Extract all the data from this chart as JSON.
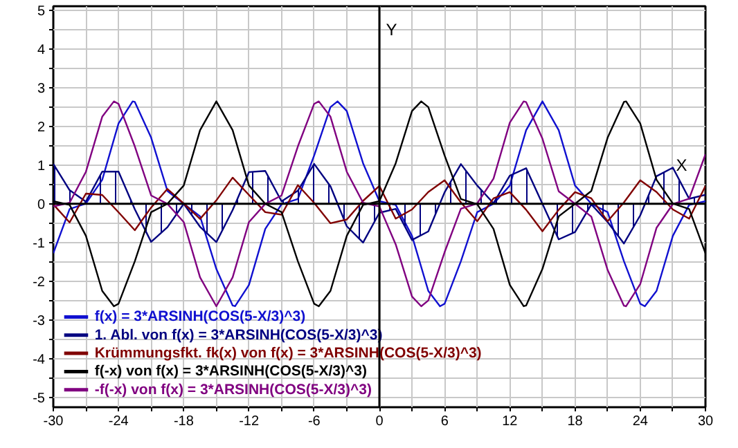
{
  "chart_data": {
    "type": "line",
    "xlabel": "X",
    "ylabel": "Y",
    "xlim": [
      -30,
      30
    ],
    "ylim": [
      -5.25,
      5.1
    ],
    "xticks": [
      -30,
      {
        "value": -27,
        "label": null
      },
      -24,
      {
        "value": -21,
        "label": null
      },
      -18,
      {
        "value": -15,
        "label": null
      },
      -12,
      {
        "value": -9,
        "label": null
      },
      -6,
      {
        "value": -3,
        "label": null
      },
      0,
      {
        "value": 3,
        "label": null
      },
      6,
      {
        "value": 9,
        "label": null
      },
      12,
      {
        "value": 15,
        "label": null
      },
      18,
      {
        "value": 21,
        "label": null
      },
      24,
      {
        "value": 27,
        "label": null
      },
      30
    ],
    "yticks": [
      -5,
      {
        "value": -4.5,
        "label": null
      },
      -4,
      {
        "value": -3.5,
        "label": null
      },
      -3,
      {
        "value": -2.5,
        "label": null
      },
      -2,
      {
        "value": -1.5,
        "label": null
      },
      -1,
      {
        "value": -0.5,
        "label": null
      },
      0,
      {
        "value": 0.5,
        "label": null
      },
      1,
      {
        "value": 1.5,
        "label": null
      },
      2,
      {
        "value": 2.5,
        "label": null
      },
      3,
      {
        "value": 3.5,
        "label": null
      },
      4,
      {
        "value": 4.5,
        "label": null
      },
      5
    ],
    "grid": true,
    "legend": "bottom left",
    "series": [
      {
        "name": "f(x) = 3*ARSINH(COS(5-X/3)^3)",
        "color": "#1010d0",
        "x": [
          -30,
          -28.5,
          -27,
          -25.5,
          -24,
          -22.699,
          -22.5,
          -21,
          -19.5,
          -18,
          -16.5,
          -15,
          -13.5,
          -13.274,
          -12,
          -10.5,
          -9,
          -7.5,
          -6,
          -4.5,
          -3.85,
          -3,
          -1.5,
          0,
          1.5,
          3,
          4.5,
          5.575,
          6,
          7.5,
          9,
          10.5,
          12,
          13.5,
          15,
          16.5,
          18,
          19.5,
          21,
          22.5,
          24,
          24.425,
          25.5,
          27,
          28.5,
          30
        ],
        "values": [
          -1.2765,
          -0.1341,
          0.0077,
          0.6183,
          2.0729,
          2.6441,
          2.6301,
          1.7088,
          0.3321,
          0.0,
          -0.322,
          -1.6826,
          -2.6261,
          -2.6441,
          -2.0948,
          -0.6495,
          -0.0092,
          0.1249,
          1.2491,
          2.4961,
          2.6441,
          2.3935,
          1.0463,
          0.0685,
          -0.0281,
          -0.8273,
          -2.2475,
          -2.6441,
          -2.5805,
          -1.4816,
          -0.216,
          0.0011,
          0.4712,
          1.8984,
          2.6441,
          1.8984,
          0.4712,
          0.0011,
          -0.216,
          -1.4816,
          -2.5805,
          -2.6441,
          -2.2475,
          -0.8273,
          -0.0281,
          0.0685
        ]
      },
      {
        "name": "1. Abl. von f(x) = 3*ARSINH(COS(5-X/3)^3)",
        "color": "#000080",
        "type": "area",
        "x": [
          -30,
          -28.5,
          -27,
          -25.5,
          -24,
          -22.5,
          -21,
          -19.5,
          -18,
          -16.5,
          -15,
          -13.5,
          -12,
          -10.5,
          -9,
          -7.5,
          -6,
          -4.5,
          -3,
          -1.5,
          0,
          1.5,
          3,
          4.5,
          6,
          7.5,
          9,
          10.5,
          12,
          13.5,
          15,
          16.5,
          18,
          19.5,
          21,
          22.5,
          24,
          25.5,
          27,
          28.5,
          30
        ],
        "values": [
          1.0312,
          0.353,
          0.0556,
          0.8298,
          0.8315,
          -0.1405,
          -0.9825,
          -0.6037,
          -0.0001,
          -0.5934,
          -0.9893,
          -0.1592,
          0.8186,
          0.8482,
          0.0628,
          0.3378,
          1.0297,
          0.4504,
          -0.5787,
          -1.0014,
          -0.2314,
          -0.1303,
          -0.9343,
          -0.7132,
          0.2978,
          1.0248,
          0.4712,
          0.015,
          0.7279,
          0.9178,
          0,
          -0.9178,
          -0.7279,
          -0.015,
          -0.4712,
          -1.0248,
          -0.2978,
          0.7132,
          0.9343,
          0.1303,
          0.2314
        ]
      },
      {
        "name": "Krümmungsfkt. fk(x) von f(x) = 3*ARSINH(COS(5-X/3)^3)",
        "color": "#800000",
        "x": [
          -30,
          -28.5,
          -27,
          -25.5,
          -24,
          -22.5,
          -21,
          -19.5,
          -18,
          -16.5,
          -15,
          -13.5,
          -12,
          -10.5,
          -9,
          -7.5,
          -6,
          -4.5,
          -3,
          -1.5,
          0,
          1.5,
          3,
          4.5,
          6,
          7.5,
          9,
          10.5,
          12,
          13.5,
          15,
          16.5,
          18,
          19.5,
          21,
          22.5,
          24,
          25.5,
          27,
          28.5,
          30
        ],
        "values": [
          -0.015,
          -0.4807,
          0.2646,
          0.2293,
          -0.2182,
          -0.6829,
          -0.0959,
          0.3833,
          0.0089,
          -0.3895,
          0.0887,
          0.6761,
          0.2276,
          -0.2154,
          -0.2801,
          0.4815,
          0.022,
          -0.5014,
          -0.405,
          0.0767,
          0.4608,
          -0.3836,
          -0.1459,
          0.3045,
          0.6062,
          0.0364,
          -0.451,
          0.1404,
          0.3025,
          -0.1531,
          -0.7071,
          -0.1531,
          0.3025,
          0.1404,
          -0.451,
          0.0364,
          0.6062,
          0.3045,
          -0.1459,
          -0.3836,
          0.4608
        ]
      },
      {
        "name": "f(-x) von f(x) = 3*ARSINH(COS(5-X/3)^3)",
        "color": "#000000",
        "x": [
          -30,
          -28.5,
          -27,
          -25.5,
          -24.425,
          -24,
          -22.5,
          -21,
          -19.5,
          -18,
          -16.5,
          -15,
          -13.5,
          -12,
          -10.5,
          -9,
          -7.5,
          -6,
          -5.575,
          -4.5,
          -3,
          -1.5,
          0,
          1.5,
          3,
          3.85,
          4.5,
          6,
          7.5,
          9,
          10.5,
          12,
          13.274,
          13.5,
          15,
          16.5,
          18,
          19.5,
          21,
          22.5,
          22.699,
          24,
          25.5,
          27,
          28.5,
          30
        ],
        "values": [
          0.0685,
          -0.0281,
          -0.8273,
          -2.2475,
          -2.6441,
          -2.5805,
          -1.4816,
          -0.216,
          0.0011,
          0.4712,
          1.8984,
          2.6441,
          1.8984,
          0.4712,
          0.0011,
          -0.216,
          -1.4816,
          -2.5805,
          -2.6441,
          -2.2475,
          -0.8273,
          -0.0281,
          0.0685,
          1.0463,
          2.3935,
          2.6441,
          2.4961,
          1.2491,
          0.1249,
          -0.0092,
          -0.6495,
          -2.0948,
          -2.6441,
          -2.6261,
          -1.6826,
          -0.322,
          0.0,
          0.3321,
          1.7088,
          2.6301,
          2.6441,
          2.0729,
          0.6183,
          0.0077,
          -0.1341,
          -1.2765
        ]
      },
      {
        "name": "-f(-x) von f(x) = 3*ARSINH(COS(5-X/3)^3)",
        "color": "#800080",
        "x": [
          -30,
          -28.5,
          -27,
          -25.5,
          -24.425,
          -24,
          -22.5,
          -21,
          -19.5,
          -18,
          -16.5,
          -15,
          -13.5,
          -12,
          -10.5,
          -9,
          -7.5,
          -6,
          -5.575,
          -4.5,
          -3,
          -1.5,
          0,
          1.5,
          3,
          3.85,
          4.5,
          6,
          7.5,
          9,
          10.5,
          12,
          13.274,
          13.5,
          15,
          16.5,
          18,
          19.5,
          21,
          22.5,
          22.699,
          24,
          25.5,
          27,
          28.5,
          30
        ],
        "values": [
          -0.0685,
          0.0281,
          0.8273,
          2.2475,
          2.6441,
          2.5805,
          1.4816,
          0.216,
          -0.0011,
          -0.4712,
          -1.8984,
          -2.6441,
          -1.8984,
          -0.4712,
          -0.0011,
          0.216,
          1.4816,
          2.5805,
          2.6441,
          2.2475,
          0.8273,
          0.0281,
          -0.0685,
          -1.0463,
          -2.3935,
          -2.6441,
          -2.4961,
          -1.2491,
          -0.1249,
          0.0092,
          0.6495,
          2.0948,
          2.6441,
          2.6261,
          1.6826,
          0.322,
          0.0,
          -0.3321,
          -1.7088,
          -2.6301,
          -2.6441,
          -2.0729,
          -0.6183,
          -0.0077,
          0.1341,
          1.2765
        ]
      }
    ]
  }
}
